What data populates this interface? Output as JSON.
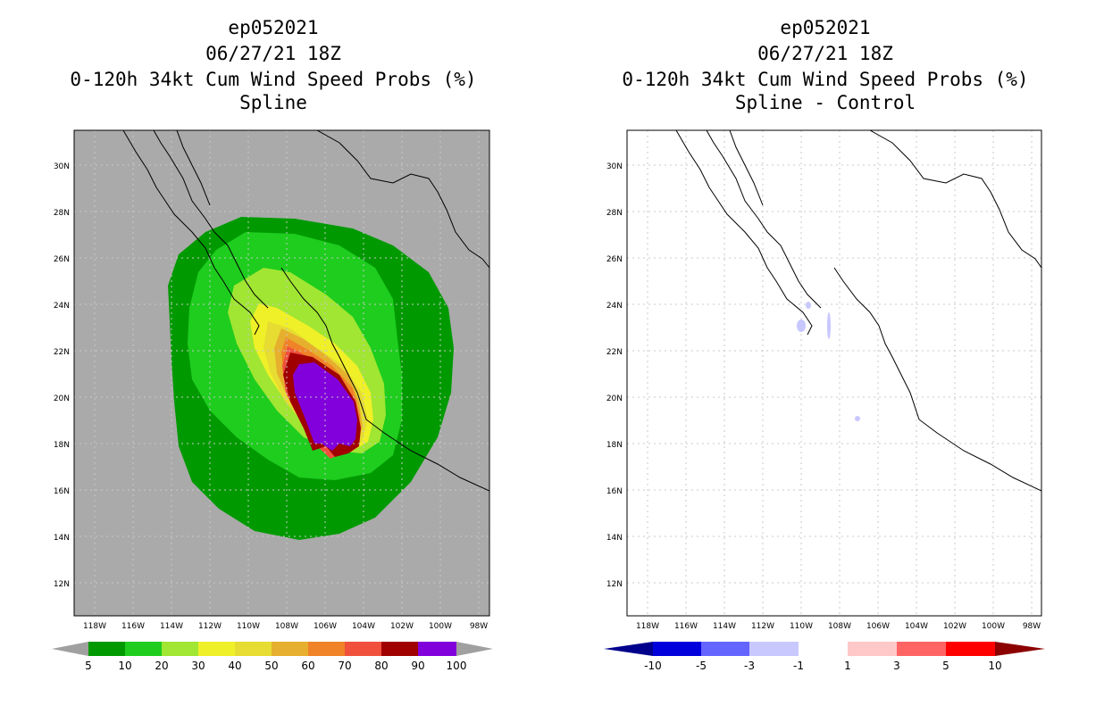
{
  "panels": [
    {
      "id": "left",
      "title": {
        "storm": "ep052021",
        "datetime": "06/27/21 18Z",
        "product": "0-120h 34kt Cum Wind Speed Probs (%)",
        "subtitle": "Spline"
      },
      "lat_labels": [
        "30N",
        "28N",
        "26N",
        "24N",
        "22N",
        "20N",
        "18N",
        "16N",
        "14N",
        "12N"
      ],
      "lon_labels": [
        "118W",
        "116W",
        "114W",
        "112W",
        "110W",
        "108W",
        "106W",
        "104W",
        "102W",
        "100W",
        "98W"
      ],
      "colorbar": {
        "labels": [
          "5",
          "10",
          "20",
          "30",
          "40",
          "50",
          "60",
          "70",
          "80",
          "90",
          "100"
        ],
        "colors": [
          "#009a00",
          "#1ecd1e",
          "#a0e632",
          "#f0f028",
          "#e6dc32",
          "#e6af2d",
          "#f08228",
          "#f0503c",
          "#a00000",
          "#8200dc"
        ],
        "end_color": "#a0a0a0"
      },
      "background_color": "#aaaaaa"
    },
    {
      "id": "right",
      "title": {
        "storm": "ep052021",
        "datetime": "06/27/21 18Z",
        "product": "0-120h 34kt Cum Wind Speed Probs (%)",
        "subtitle": "Spline - Control"
      },
      "lat_labels": [
        "30N",
        "28N",
        "26N",
        "24N",
        "22N",
        "20N",
        "18N",
        "16N",
        "14N",
        "12N"
      ],
      "lon_labels": [
        "118W",
        "116W",
        "114W",
        "112W",
        "110W",
        "108W",
        "106W",
        "104W",
        "102W",
        "100W",
        "98W"
      ],
      "colorbar": {
        "labels": [
          "-10",
          "-5",
          "-3",
          "-1",
          "1",
          "3",
          "5",
          "10"
        ],
        "colors": [
          "#0000dc",
          "#6464ff",
          "#c8c8ff",
          "#ffffff",
          "#ffc8c8",
          "#ff6464",
          "#ff0000"
        ],
        "low_end_color": "#00008c",
        "high_end_color": "#8c0000"
      },
      "background_color": "#ffffff"
    }
  ]
}
